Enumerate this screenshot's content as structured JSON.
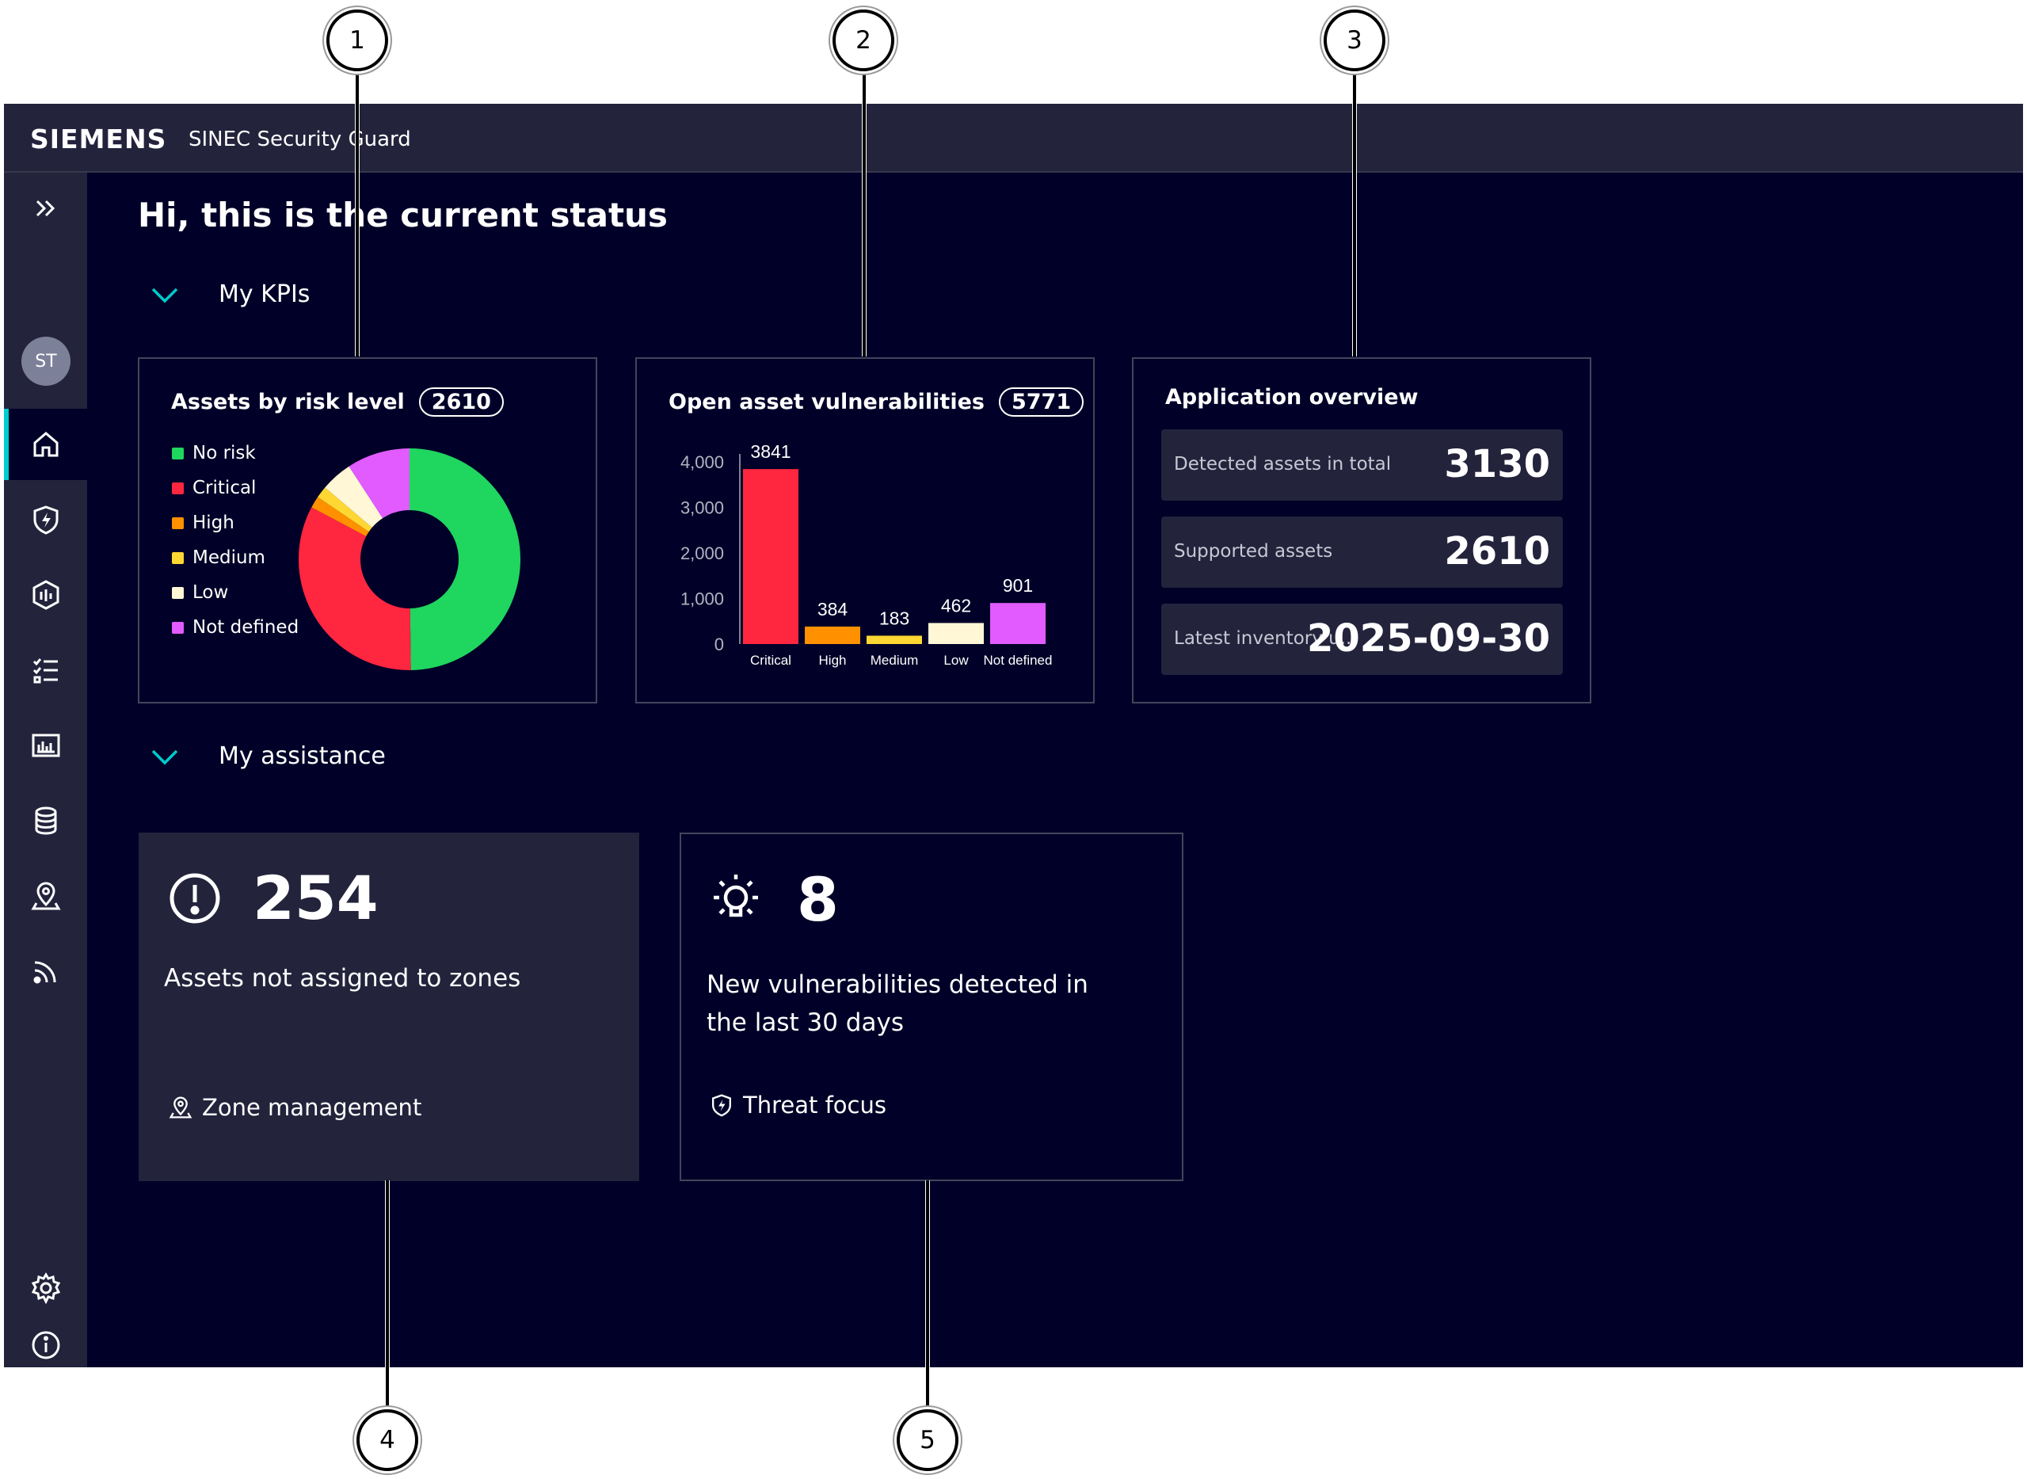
{
  "header": {
    "brand": "SIEMENS",
    "app_title": "SINEC Security Guard"
  },
  "sidebar": {
    "avatar_initials": "ST",
    "items": [
      "expand",
      "home",
      "threat-focus",
      "vulnerabilities",
      "tasks",
      "reports",
      "assets",
      "zones",
      "feeds",
      "settings",
      "info"
    ],
    "active": "home"
  },
  "page": {
    "greeting": "Hi, this is the current status"
  },
  "sections": {
    "kpis": "My KPIs",
    "assistance": "My assistance"
  },
  "risk_card": {
    "title": "Assets by risk level",
    "count": "2610",
    "legend": [
      {
        "label": "No risk",
        "color": "#1fd65f"
      },
      {
        "label": "Critical",
        "color": "#ff2640"
      },
      {
        "label": "High",
        "color": "#ff9000"
      },
      {
        "label": "Medium",
        "color": "#ffd732"
      },
      {
        "label": "Low",
        "color": "#fff7d6"
      },
      {
        "label": "Not defined",
        "color": "#e15bff"
      }
    ]
  },
  "vuln_card": {
    "title": "Open asset vulnerabilities",
    "count": "5771"
  },
  "overview_card": {
    "title": "Application overview",
    "rows": [
      {
        "label": "Detected assets in total",
        "value": "3130"
      },
      {
        "label": "Supported assets",
        "value": "2610"
      },
      {
        "label": "Latest inventory u...",
        "value": "2025-09-30"
      }
    ]
  },
  "assist_zones": {
    "number": "254",
    "description": "Assets not assigned to zones",
    "link": "Zone management"
  },
  "assist_threats": {
    "number": "8",
    "description_line1": "New vulnerabilities detected in",
    "description_line2": "the last 30 days",
    "link": "Threat focus"
  },
  "callouts": [
    "1",
    "2",
    "3",
    "4",
    "5"
  ],
  "chart_data": [
    {
      "type": "pie",
      "title": "Assets by risk level",
      "categories": [
        "No risk",
        "Critical",
        "High",
        "Medium",
        "Low",
        "Not defined"
      ],
      "values": [
        1300,
        860,
        45,
        45,
        120,
        240
      ],
      "colors": [
        "#1fd65f",
        "#ff2640",
        "#ff9000",
        "#ffd732",
        "#fff7d6",
        "#e15bff"
      ]
    },
    {
      "type": "bar",
      "title": "Open asset vulnerabilities",
      "categories": [
        "Critical",
        "High",
        "Medium",
        "Low",
        "Not defined"
      ],
      "values": [
        3841,
        384,
        183,
        462,
        901
      ],
      "colors": [
        "#ff2640",
        "#ff9000",
        "#ffd732",
        "#fff7d6",
        "#e15bff"
      ],
      "yticks": [
        "4,000",
        "3,000",
        "2,000",
        "1,000",
        "0"
      ],
      "ylim": [
        0,
        4000
      ]
    }
  ]
}
